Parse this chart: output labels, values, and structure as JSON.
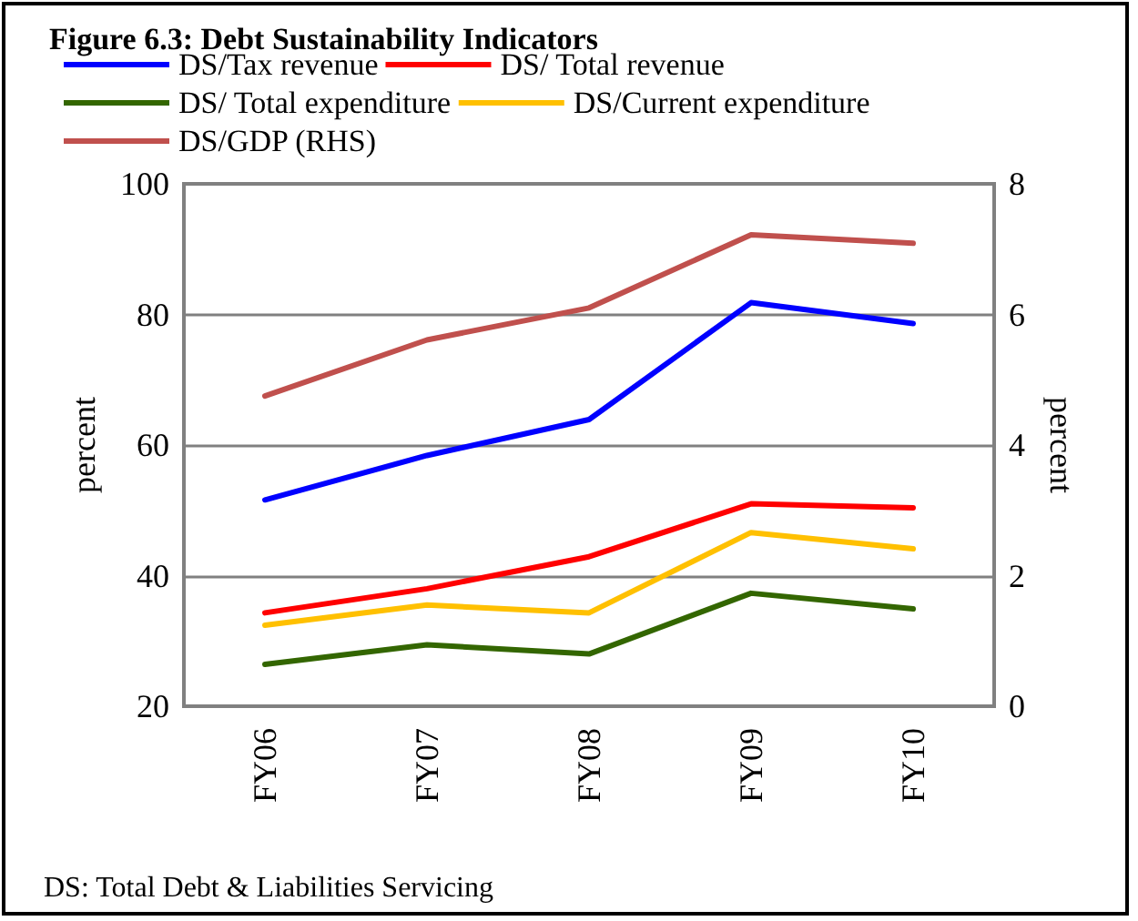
{
  "chart_data": {
    "type": "line",
    "title": "Figure 6.3: Debt Sustainability Indicators",
    "ylabel": "percent",
    "y2label": "percent",
    "categories": [
      "FY06",
      "FY07",
      "FY08",
      "FY09",
      "FY10"
    ],
    "series": [
      {
        "name": "DS/Tax revenue",
        "color": "#0000ff",
        "values": [
          51.6,
          58.4,
          63.9,
          81.8,
          78.6
        ]
      },
      {
        "name": "DS/ Total revenue",
        "color": "#ff0000",
        "values": [
          34.3,
          38,
          42.9,
          51,
          50.4
        ]
      },
      {
        "name": "DS/ Total expenditure",
        "color": "#336600",
        "values": [
          26.4,
          29.4,
          28,
          37.3,
          34.9
        ]
      },
      {
        "name": "DS/Current expenditure",
        "color": "#ffc000",
        "values": [
          32.4,
          35.5,
          34.3,
          46.6,
          44.1
        ]
      },
      {
        "name": "DS/GDP (RHS)",
        "color": "#c0504d",
        "axis": "y2",
        "values": [
          4.75,
          5.61,
          6.1,
          7.22,
          7.09
        ]
      }
    ],
    "ylim": [
      20,
      100
    ],
    "yticks": [
      20,
      40,
      60,
      80,
      100
    ],
    "y2lim": [
      0,
      8
    ],
    "y2ticks": [
      0,
      2,
      4,
      6,
      8
    ],
    "grid": "y",
    "legend": "top",
    "marker": "none",
    "line_style": "solid",
    "annotations": [
      "DS: Total Debt & Liabilities Servicing"
    ]
  }
}
